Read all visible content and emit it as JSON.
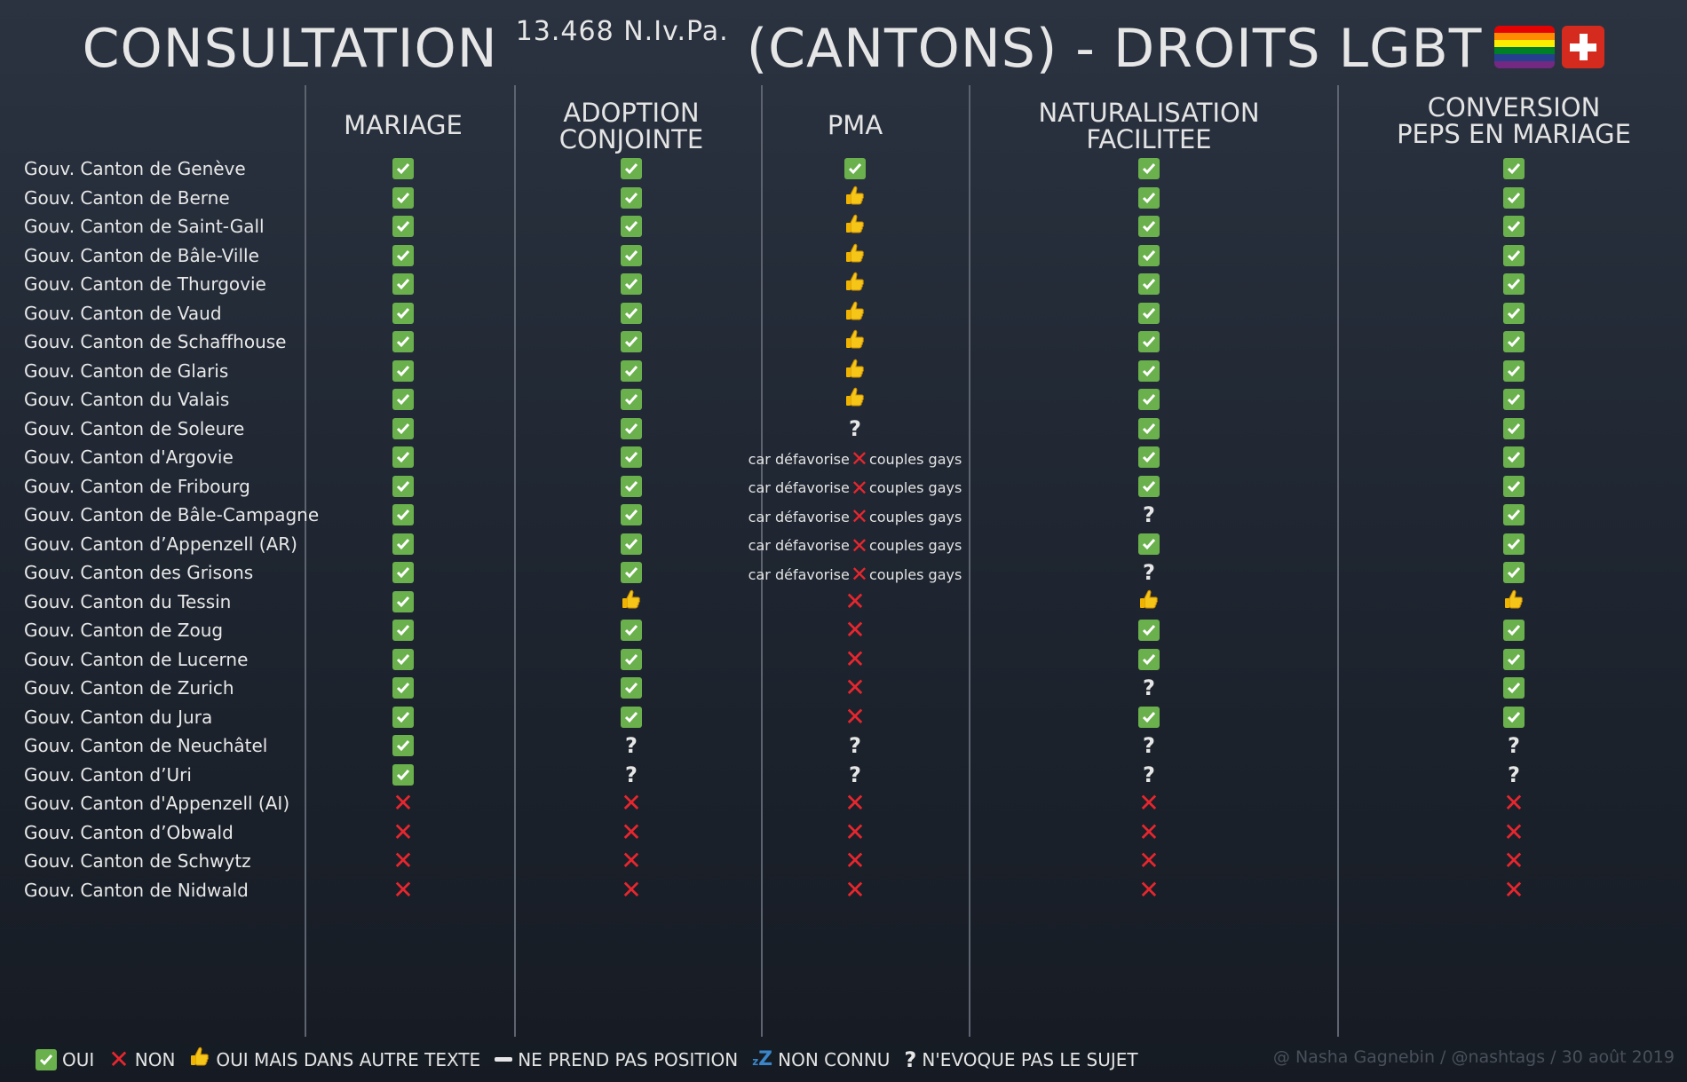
{
  "title": {
    "main": "CONSULTATION",
    "sup": "13.468 N.Iv.Pa.",
    "rest": "(CANTONS) - DROITS LGBT"
  },
  "chart_data": {
    "type": "table",
    "columns": [
      "MARIAGE",
      "ADOPTION CONJOINTE",
      "PMA",
      "NATURALISATION FACILITEE",
      "CONVERSION PEPS EN MARIAGE"
    ],
    "note_prefix": "car défavorise",
    "note_suffix": "couples gays",
    "rows": [
      {
        "name": "Gouv. Canton de Genève",
        "values": [
          "oui",
          "oui",
          "oui",
          "oui",
          "oui"
        ]
      },
      {
        "name": "Gouv. Canton de Berne",
        "values": [
          "oui",
          "oui",
          "oui_autre",
          "oui",
          "oui"
        ]
      },
      {
        "name": "Gouv. Canton de Saint-Gall",
        "values": [
          "oui",
          "oui",
          "oui_autre",
          "oui",
          "oui"
        ]
      },
      {
        "name": "Gouv. Canton de Bâle-Ville",
        "values": [
          "oui",
          "oui",
          "oui_autre",
          "oui",
          "oui"
        ]
      },
      {
        "name": "Gouv. Canton de Thurgovie",
        "values": [
          "oui",
          "oui",
          "oui_autre",
          "oui",
          "oui"
        ]
      },
      {
        "name": "Gouv. Canton de Vaud",
        "values": [
          "oui",
          "oui",
          "oui_autre",
          "oui",
          "oui"
        ]
      },
      {
        "name": "Gouv. Canton de Schaffhouse",
        "values": [
          "oui",
          "oui",
          "oui_autre",
          "oui",
          "oui"
        ]
      },
      {
        "name": "Gouv. Canton de Glaris",
        "values": [
          "oui",
          "oui",
          "oui_autre",
          "oui",
          "oui"
        ]
      },
      {
        "name": "Gouv. Canton du Valais",
        "values": [
          "oui",
          "oui",
          "oui_autre",
          "oui",
          "oui"
        ]
      },
      {
        "name": "Gouv. Canton de Soleure",
        "values": [
          "oui",
          "oui",
          "pas_sujet",
          "oui",
          "oui"
        ]
      },
      {
        "name": "Gouv. Canton d'Argovie",
        "values": [
          "oui",
          "oui",
          "non_note",
          "oui",
          "oui"
        ]
      },
      {
        "name": "Gouv. Canton de Fribourg",
        "values": [
          "oui",
          "oui",
          "non_note",
          "oui",
          "oui"
        ]
      },
      {
        "name": "Gouv. Canton de Bâle-Campagne",
        "values": [
          "oui",
          "oui",
          "non_note",
          "pas_sujet",
          "oui"
        ]
      },
      {
        "name": "Gouv. Canton d’Appenzell (AR)",
        "values": [
          "oui",
          "oui",
          "non_note",
          "oui",
          "oui"
        ]
      },
      {
        "name": "Gouv. Canton des Grisons",
        "values": [
          "oui",
          "oui",
          "non_note",
          "pas_sujet",
          "oui"
        ]
      },
      {
        "name": "Gouv. Canton du Tessin",
        "values": [
          "oui",
          "oui_autre",
          "non",
          "oui_autre",
          "oui_autre"
        ]
      },
      {
        "name": "Gouv. Canton de Zoug",
        "values": [
          "oui",
          "oui",
          "non",
          "oui",
          "oui"
        ]
      },
      {
        "name": "Gouv. Canton de Lucerne",
        "values": [
          "oui",
          "oui",
          "non",
          "oui",
          "oui"
        ]
      },
      {
        "name": "Gouv. Canton de Zurich",
        "values": [
          "oui",
          "oui",
          "non",
          "pas_sujet",
          "oui"
        ]
      },
      {
        "name": "Gouv. Canton du Jura",
        "values": [
          "oui",
          "oui",
          "non",
          "oui",
          "oui"
        ]
      },
      {
        "name": "Gouv. Canton de Neuchâtel",
        "values": [
          "oui",
          "pas_sujet",
          "pas_sujet",
          "pas_sujet",
          "pas_sujet"
        ]
      },
      {
        "name": "Gouv. Canton d’Uri",
        "values": [
          "oui",
          "pas_sujet",
          "pas_sujet",
          "pas_sujet",
          "pas_sujet"
        ]
      },
      {
        "name": "Gouv. Canton d'Appenzell (AI)",
        "values": [
          "non",
          "non",
          "non",
          "non",
          "non"
        ]
      },
      {
        "name": "Gouv. Canton d’Obwald",
        "values": [
          "non",
          "non",
          "non",
          "non",
          "non"
        ]
      },
      {
        "name": "Gouv. Canton de Schwytz",
        "values": [
          "non",
          "non",
          "non",
          "non",
          "non"
        ]
      },
      {
        "name": "Gouv. Canton de Nidwald",
        "values": [
          "non",
          "non",
          "non",
          "non",
          "non"
        ]
      }
    ]
  },
  "legend": {
    "oui": "OUI",
    "non": "NON",
    "oui_autre": "OUI MAIS DANS AUTRE TEXTE",
    "neutre": "NE PREND PAS POSITION",
    "inconnu": "NON CONNU",
    "pas_sujet": "N'EVOQUE PAS LE SUJET"
  },
  "credit": "@ Nasha Gagnebin / @nashtags / 30 août 2019",
  "colors": {
    "check": "#6ab04c",
    "cross": "#e8262e",
    "thumb": "#f5c518",
    "zz": "#3a86c8"
  }
}
